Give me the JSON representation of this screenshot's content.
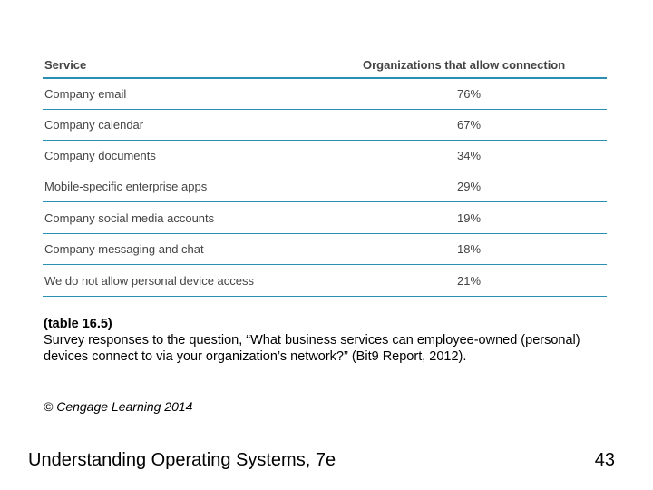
{
  "table": {
    "headers": {
      "service": "Service",
      "organizations": "Organizations that allow connection"
    },
    "rows": [
      {
        "service": "Company email",
        "value": "76%"
      },
      {
        "service": "Company calendar",
        "value": "67%"
      },
      {
        "service": "Company documents",
        "value": "34%"
      },
      {
        "service": "Mobile-specific enterprise apps",
        "value": "29%"
      },
      {
        "service": "Company social media accounts",
        "value": "19%"
      },
      {
        "service": "Company messaging and chat",
        "value": "18%"
      },
      {
        "service": "We do not allow personal device access",
        "value": "21%"
      }
    ]
  },
  "caption": {
    "ref": "(table 16.5)",
    "text": "Survey responses to the question, “What business services can employee-owned (personal) devices connect to via your organization’s network?” (Bit9 Report, 2012).",
    "copyright": "© Cengage Learning 2014"
  },
  "footer": {
    "title": "Understanding Operating Systems, 7e",
    "page_number": "43"
  },
  "colors": {
    "rule": "#2a8fb0",
    "table_text": "#444444"
  }
}
